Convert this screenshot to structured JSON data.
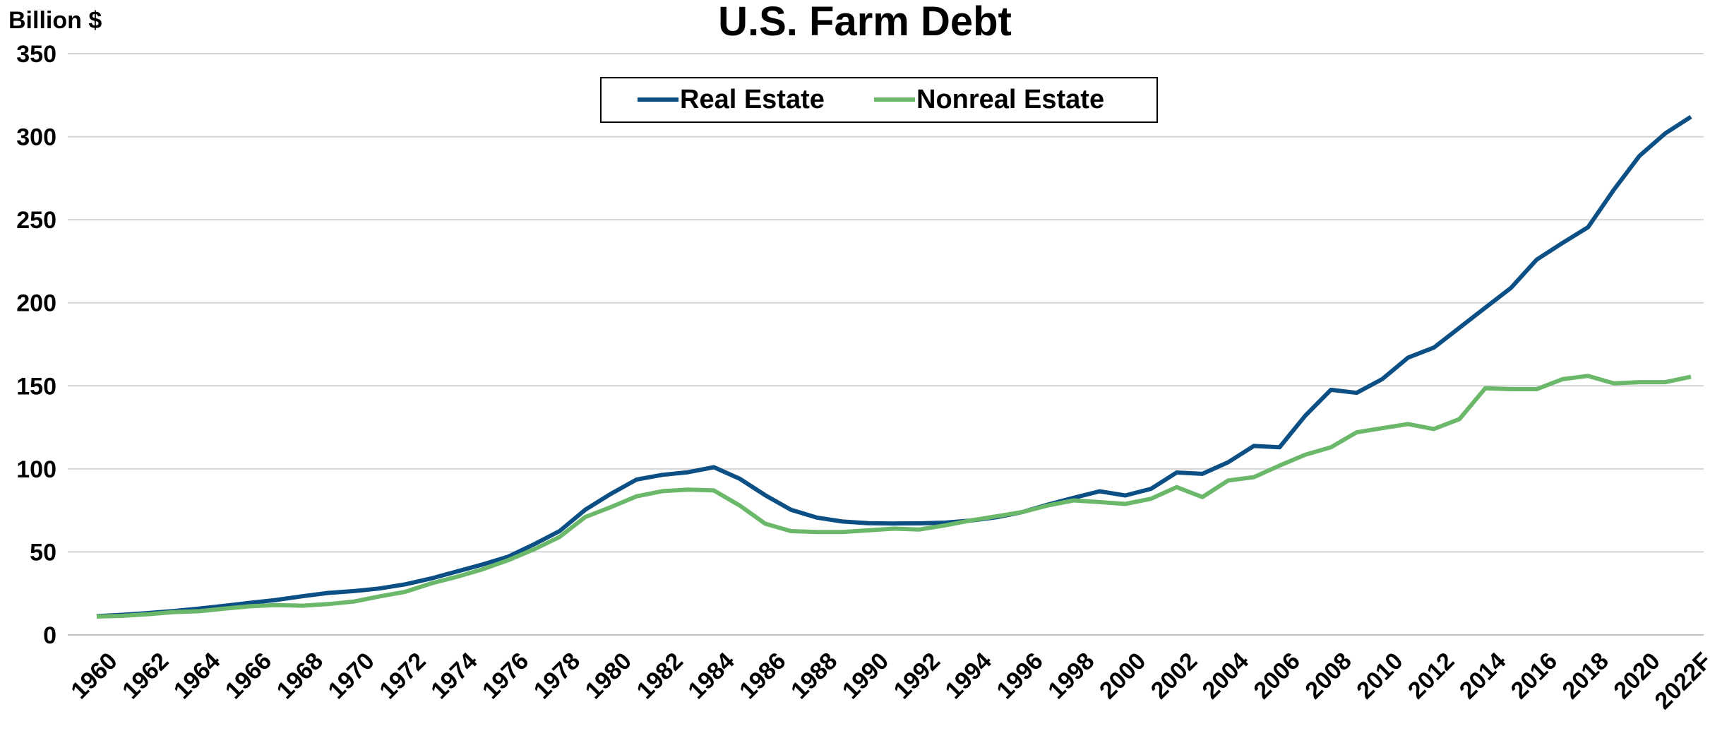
{
  "chart_data": {
    "type": "line",
    "title": "U.S. Farm Debt",
    "y_label": "Billion $",
    "categories": [
      "1960",
      null,
      "1962",
      null,
      "1964",
      null,
      "1966",
      null,
      "1968",
      null,
      "1970",
      null,
      "1972",
      null,
      "1974",
      null,
      "1976",
      null,
      "1978",
      null,
      "1980",
      null,
      "1982",
      null,
      "1984",
      null,
      "1986",
      null,
      "1988",
      null,
      "1990",
      null,
      "1992",
      null,
      "1994",
      null,
      "1996",
      null,
      "1998",
      null,
      "2000",
      null,
      "2002",
      null,
      "2004",
      null,
      "2006",
      null,
      "2008",
      null,
      "2010",
      null,
      "2012",
      null,
      "2014",
      null,
      "2016",
      null,
      "2018",
      null,
      "2020",
      null,
      "2022F"
    ],
    "series": [
      {
        "name": "Real Estate",
        "color": "#0b4f85",
        "values": [
          11.3,
          12.1,
          13.2,
          14.4,
          15.9,
          17.6,
          19.4,
          21.1,
          23.3,
          25.3,
          26.4,
          28.0,
          30.5,
          34.0,
          38.2,
          42.4,
          47.1,
          54.5,
          62.5,
          75.4,
          85.0,
          93.6,
          96.4,
          98.0,
          101.0,
          94.1,
          84.1,
          75.4,
          70.7,
          68.3,
          67.3,
          67.1,
          67.2,
          67.6,
          68.9,
          70.9,
          74.0,
          78.5,
          82.6,
          86.5,
          84.0,
          88.0,
          97.8,
          97.0,
          104.0,
          113.8,
          113.0,
          132.0,
          147.6,
          145.8,
          154.1,
          167.0,
          173.0,
          185.0,
          197.0,
          209.0,
          226.0,
          236.0,
          245.5,
          268.0,
          288.5,
          302.0,
          312.0
        ]
      },
      {
        "name": "Nonreal Estate",
        "color": "#6bb86a",
        "values": [
          11.1,
          11.5,
          12.5,
          13.8,
          14.3,
          15.9,
          17.3,
          18.0,
          17.6,
          18.6,
          20.1,
          23.2,
          26.0,
          31.0,
          35.0,
          39.5,
          45.0,
          51.5,
          59.0,
          71.0,
          77.0,
          83.5,
          86.6,
          87.5,
          87.0,
          78.0,
          67.0,
          62.5,
          62.0,
          62.0,
          63.0,
          64.0,
          63.5,
          66.0,
          69.0,
          71.5,
          74.0,
          78.0,
          81.0,
          80.0,
          78.9,
          82.0,
          89.0,
          83.0,
          93.0,
          95.0,
          102.0,
          108.5,
          113.0,
          122.0,
          124.5,
          127.0,
          124.0,
          130.0,
          148.5,
          148.0,
          148.0,
          154.0,
          156.0,
          151.5,
          152.2,
          152.2,
          155.5
        ]
      }
    ],
    "ylim": [
      0,
      350
    ],
    "yticks": [
      0,
      50,
      100,
      150,
      200,
      250,
      300,
      350
    ],
    "grid": true,
    "legend": "top"
  }
}
